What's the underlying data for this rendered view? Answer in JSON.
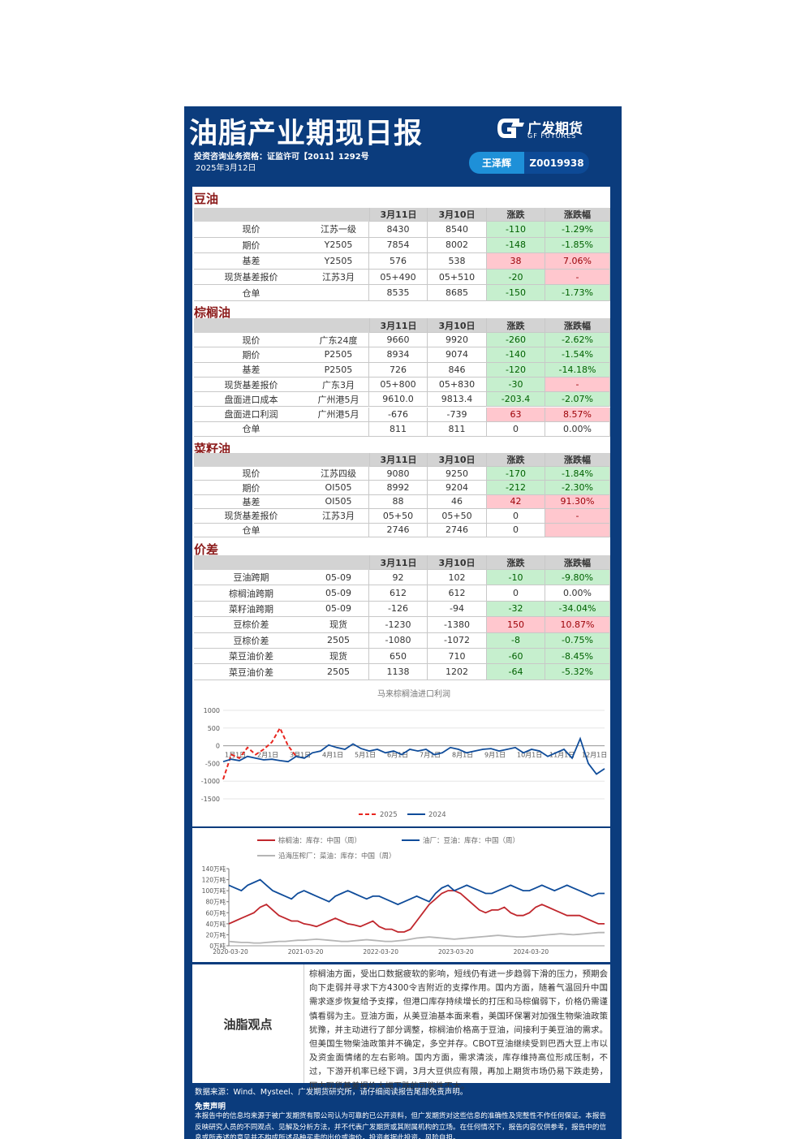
{
  "header": {
    "title": "油脂产业期现日报",
    "license": "投资咨询业务资格：证监许可【2011】1292号",
    "date": "2025年3月12日",
    "logo_cn": "广发期货",
    "logo_en": "GF FUTURES",
    "analyst": "王泽辉",
    "analyst_id": "Z0019938"
  },
  "sections": [
    {
      "title": "豆油",
      "headers": [
        "3月11日",
        "3月10日",
        "涨跌",
        "涨跌幅"
      ],
      "rows": [
        {
          "label": "现价",
          "spec": "江苏一级",
          "cur": "8430",
          "prev": "8540",
          "chg": "-110",
          "pct": "-1.29%"
        },
        {
          "label": "期价",
          "spec": "Y2505",
          "cur": "7854",
          "prev": "8002",
          "chg": "-148",
          "pct": "-1.85%"
        },
        {
          "label": "基差",
          "spec": "Y2505",
          "cur": "576",
          "prev": "538",
          "chg": "38",
          "pct": "7.06%"
        },
        {
          "label": "现货基差报价",
          "spec": "江苏3月",
          "cur": "05+490",
          "prev": "05+510",
          "chg": "-20",
          "pct": "-"
        },
        {
          "label": "仓单",
          "cur": "8535",
          "prev": "8685",
          "chg": "-150",
          "pct": "-1.73%"
        }
      ]
    },
    {
      "title": "棕榈油",
      "headers": [
        "3月11日",
        "3月10日",
        "涨跌",
        "涨跌幅"
      ],
      "rows": [
        {
          "label": "现价",
          "spec": "广东24度",
          "cur": "9660",
          "prev": "9920",
          "chg": "-260",
          "pct": "-2.62%"
        },
        {
          "label": "期价",
          "spec": "P2505",
          "cur": "8934",
          "prev": "9074",
          "chg": "-140",
          "pct": "-1.54%"
        },
        {
          "label": "基差",
          "spec": "P2505",
          "cur": "726",
          "prev": "846",
          "chg": "-120",
          "pct": "-14.18%"
        },
        {
          "label": "现货基差报价",
          "spec": "广东3月",
          "cur": "05+800",
          "prev": "05+830",
          "chg": "-30",
          "pct": "-"
        },
        {
          "label": "盘面进口成本",
          "spec": "广州港5月",
          "cur": "9610.0",
          "prev": "9813.4",
          "chg": "-203.4",
          "pct": "-2.07%"
        },
        {
          "label": "盘面进口利润",
          "spec": "广州港5月",
          "cur": "-676",
          "prev": "-739",
          "chg": "63",
          "pct": "8.57%"
        },
        {
          "label": "仓单",
          "cur": "811",
          "prev": "811",
          "chg": "0",
          "pct": "0.00%"
        }
      ]
    },
    {
      "title": "菜籽油",
      "headers": [
        "3月11日",
        "3月10日",
        "涨跌",
        "涨跌幅"
      ],
      "rows": [
        {
          "label": "现价",
          "spec": "江苏四级",
          "cur": "9080",
          "prev": "9250",
          "chg": "-170",
          "pct": "-1.84%"
        },
        {
          "label": "期价",
          "spec": "OI505",
          "cur": "8992",
          "prev": "9204",
          "chg": "-212",
          "pct": "-2.30%"
        },
        {
          "label": "基差",
          "spec": "OI505",
          "cur": "88",
          "prev": "46",
          "chg": "42",
          "pct": "91.30%"
        },
        {
          "label": "现货基差报价",
          "spec": "江苏3月",
          "cur": "05+50",
          "prev": "05+50",
          "chg": "0",
          "pct": "-"
        },
        {
          "label": "仓单",
          "cur": "2746",
          "prev": "2746",
          "chg": "0"
        }
      ]
    },
    {
      "title": "价差",
      "headers": [
        "3月11日",
        "3月10日",
        "涨跌",
        "涨跌幅"
      ],
      "rows": [
        {
          "label": "豆油跨期",
          "spec": "05-09",
          "cur": "92",
          "prev": "102",
          "chg": "-10",
          "pct": "-9.80%"
        },
        {
          "label": "棕榈油跨期",
          "spec": "05-09",
          "cur": "612",
          "prev": "612",
          "chg": "0",
          "pct": "0.00%"
        },
        {
          "label": "菜籽油跨期",
          "spec": "05-09",
          "cur": "-126",
          "prev": "-94",
          "chg": "-32",
          "pct": "-34.04%"
        },
        {
          "label": "豆棕价差",
          "spec": "现货",
          "cur": "-1230",
          "prev": "-1380",
          "chg": "150",
          "pct": "10.87%"
        },
        {
          "label": "豆棕价差",
          "spec": "2505",
          "cur": "-1080",
          "prev": "-1072",
          "chg": "-8",
          "pct": "-0.75%"
        },
        {
          "label": "菜豆油价差",
          "spec": "现货",
          "cur": "650",
          "prev": "710",
          "chg": "-60",
          "pct": "-8.45%"
        },
        {
          "label": "菜豆油价差",
          "spec": "2505",
          "cur": "1138",
          "prev": "1202",
          "chg": "-64",
          "pct": "-5.32%"
        }
      ]
    }
  ],
  "chart_data": [
    {
      "type": "line",
      "title": "马来棕榈油进口利润",
      "categories": [
        "1月1日",
        null,
        null,
        null,
        "2月1日",
        null,
        null,
        null,
        "3月1日",
        null,
        null,
        null,
        "4月1日",
        null,
        null,
        null,
        "5月1日",
        null,
        null,
        null,
        "6月1日",
        null,
        null,
        null,
        "7月1日",
        null,
        null,
        null,
        "8月1日",
        null,
        null,
        null,
        "9月1日",
        null,
        null,
        null,
        "10月1日",
        null,
        null,
        null,
        "11月1日",
        null,
        null,
        null,
        "12月1日",
        null,
        null,
        null
      ],
      "series": [
        {
          "name": "2025",
          "color": "#e8261f",
          "dash": true,
          "values": [
            -950,
            -250,
            -350,
            -50,
            -250,
            -100,
            100,
            500,
            0,
            -300,
            null,
            null,
            null,
            null,
            null,
            null,
            null,
            null,
            null,
            null,
            null,
            null,
            null,
            null,
            null,
            null,
            null,
            null,
            null,
            null,
            null,
            null,
            null,
            null,
            null,
            null,
            null,
            null,
            null,
            null,
            null,
            null,
            null,
            null,
            null,
            null,
            null,
            null
          ]
        },
        {
          "name": "2024",
          "color": "#0f4c9a",
          "values": [
            -450,
            -380,
            -420,
            -300,
            -350,
            -400,
            -380,
            -420,
            -450,
            -300,
            -350,
            -200,
            -150,
            20,
            -50,
            -100,
            50,
            -80,
            -150,
            -100,
            -200,
            -150,
            -250,
            -100,
            -150,
            -100,
            -250,
            -200,
            -50,
            -100,
            -200,
            -150,
            -100,
            -80,
            -150,
            -100,
            -50,
            -200,
            -100,
            -150,
            -300,
            -200,
            -100,
            -350,
            200,
            -500,
            -800,
            -650
          ]
        }
      ],
      "ylim": [
        -1500,
        1000
      ],
      "yticks": [
        -1500,
        -1000,
        -500,
        0,
        500,
        1000
      ],
      "grid": true
    },
    {
      "type": "line",
      "categories": [
        "2020-03-20",
        null,
        null,
        null,
        null,
        null,
        null,
        null,
        null,
        null,
        null,
        null,
        "2021-03-20",
        null,
        null,
        null,
        null,
        null,
        null,
        null,
        null,
        null,
        null,
        null,
        "2022-03-20",
        null,
        null,
        null,
        null,
        null,
        null,
        null,
        null,
        null,
        null,
        null,
        "2023-03-20",
        null,
        null,
        null,
        null,
        null,
        null,
        null,
        null,
        null,
        null,
        null,
        "2024-03-20",
        null,
        null,
        null,
        null,
        null,
        null,
        null,
        null,
        null,
        null,
        null,
        null
      ],
      "series": [
        {
          "name": "棕榈油：库存：中国（周）",
          "color": "#c0272d",
          "values": [
            40,
            45,
            50,
            55,
            60,
            70,
            75,
            65,
            55,
            50,
            45,
            45,
            40,
            38,
            35,
            40,
            45,
            50,
            45,
            40,
            38,
            35,
            40,
            45,
            35,
            30,
            30,
            25,
            25,
            30,
            45,
            60,
            75,
            85,
            95,
            100,
            100,
            95,
            85,
            75,
            65,
            60,
            65,
            65,
            70,
            60,
            55,
            55,
            60,
            70,
            75,
            70,
            65,
            60,
            55,
            55,
            55,
            50,
            45,
            40,
            40
          ]
        },
        {
          "name": "油厂：豆油：库存：中国（周）",
          "color": "#0f4c9a",
          "values": [
            110,
            105,
            100,
            110,
            115,
            120,
            110,
            100,
            95,
            90,
            85,
            95,
            100,
            95,
            90,
            85,
            80,
            90,
            95,
            100,
            95,
            90,
            85,
            90,
            90,
            85,
            80,
            75,
            80,
            85,
            90,
            85,
            80,
            95,
            105,
            110,
            100,
            105,
            110,
            105,
            100,
            95,
            95,
            100,
            105,
            110,
            105,
            100,
            100,
            105,
            110,
            105,
            100,
            105,
            110,
            105,
            100,
            95,
            90,
            95,
            95
          ]
        },
        {
          "name": "沿海压榨厂：菜油：库存：中国（周）",
          "color": "#b5b5b5",
          "values": [
            8,
            7,
            6,
            6,
            5,
            5,
            6,
            7,
            8,
            8,
            9,
            10,
            10,
            11,
            12,
            11,
            10,
            9,
            8,
            8,
            9,
            10,
            11,
            10,
            9,
            8,
            8,
            9,
            10,
            12,
            14,
            15,
            16,
            15,
            14,
            13,
            12,
            13,
            14,
            15,
            16,
            17,
            18,
            19,
            18,
            17,
            16,
            16,
            17,
            18,
            19,
            20,
            21,
            22,
            21,
            20,
            21,
            22,
            23,
            24,
            24
          ]
        }
      ],
      "ylim": [
        0,
        140
      ],
      "yticks": [
        {
          "value": 0,
          "label": "0万吨"
        },
        {
          "value": 20,
          "label": "20万吨"
        },
        {
          "value": 40,
          "label": "40万吨"
        },
        {
          "value": 60,
          "label": "60万吨"
        },
        {
          "value": 80,
          "label": "80万吨"
        },
        {
          "value": 100,
          "label": "100万吨"
        },
        {
          "value": 120,
          "label": "120万吨"
        },
        {
          "value": 140,
          "label": "140万吨"
        }
      ],
      "grid": false
    }
  ],
  "view": {
    "title": "油脂观点",
    "text": "棕榈油方面，受出口数据疲软的影响，短线仍有进一步趋弱下滑的压力，预期会向下走弱并寻求下方4300令吉附近的支撑作用。国内方面，随着气温回升中国需求逐步恢复给予支撑，但港口库存持续增长的打压和马棕偏弱下，价格仍需谨慎看弱为主。豆油方面，从美豆油基本面来看，美国环保署对加强生物柴油政策犹豫，并主动进行了部分调整，棕榈油价格高于豆油，间接利于美豆油的需求。但美国生物柴油政策并不确定，多空并存。CBOT豆油继续受到巴西大豆上市以及资金面情绪的左右影响。国内方面，需求清淡，库存维持高位形成压制，不过，下游开机率已经下调，3月大豆供应有限，再加上期货市场仍易下跌走势，国内现货基差报价大幅下跌的可能性不大。"
  },
  "footer": {
    "source": "数据来源：Wind、Mysteel、广发期货研究所，请仔细阅读报告尾部免责声明。",
    "disclaimer_title": "免责声明",
    "disclaimer": "本报告中的信息均来源于被广发期货有限公司认为可靠的已公开资料，但广发期货对这些信息的准确性及完整性不作任何保证。本报告反映研究人员的不同观点、见解及分析方法，并不代表广发期货或其附属机构的立场。在任何情况下，报告内容仅供参考，报告中的信息或所表述的意见并不构成所述品种买卖的出价或询价，投资者据此投资，风险自担。"
  }
}
